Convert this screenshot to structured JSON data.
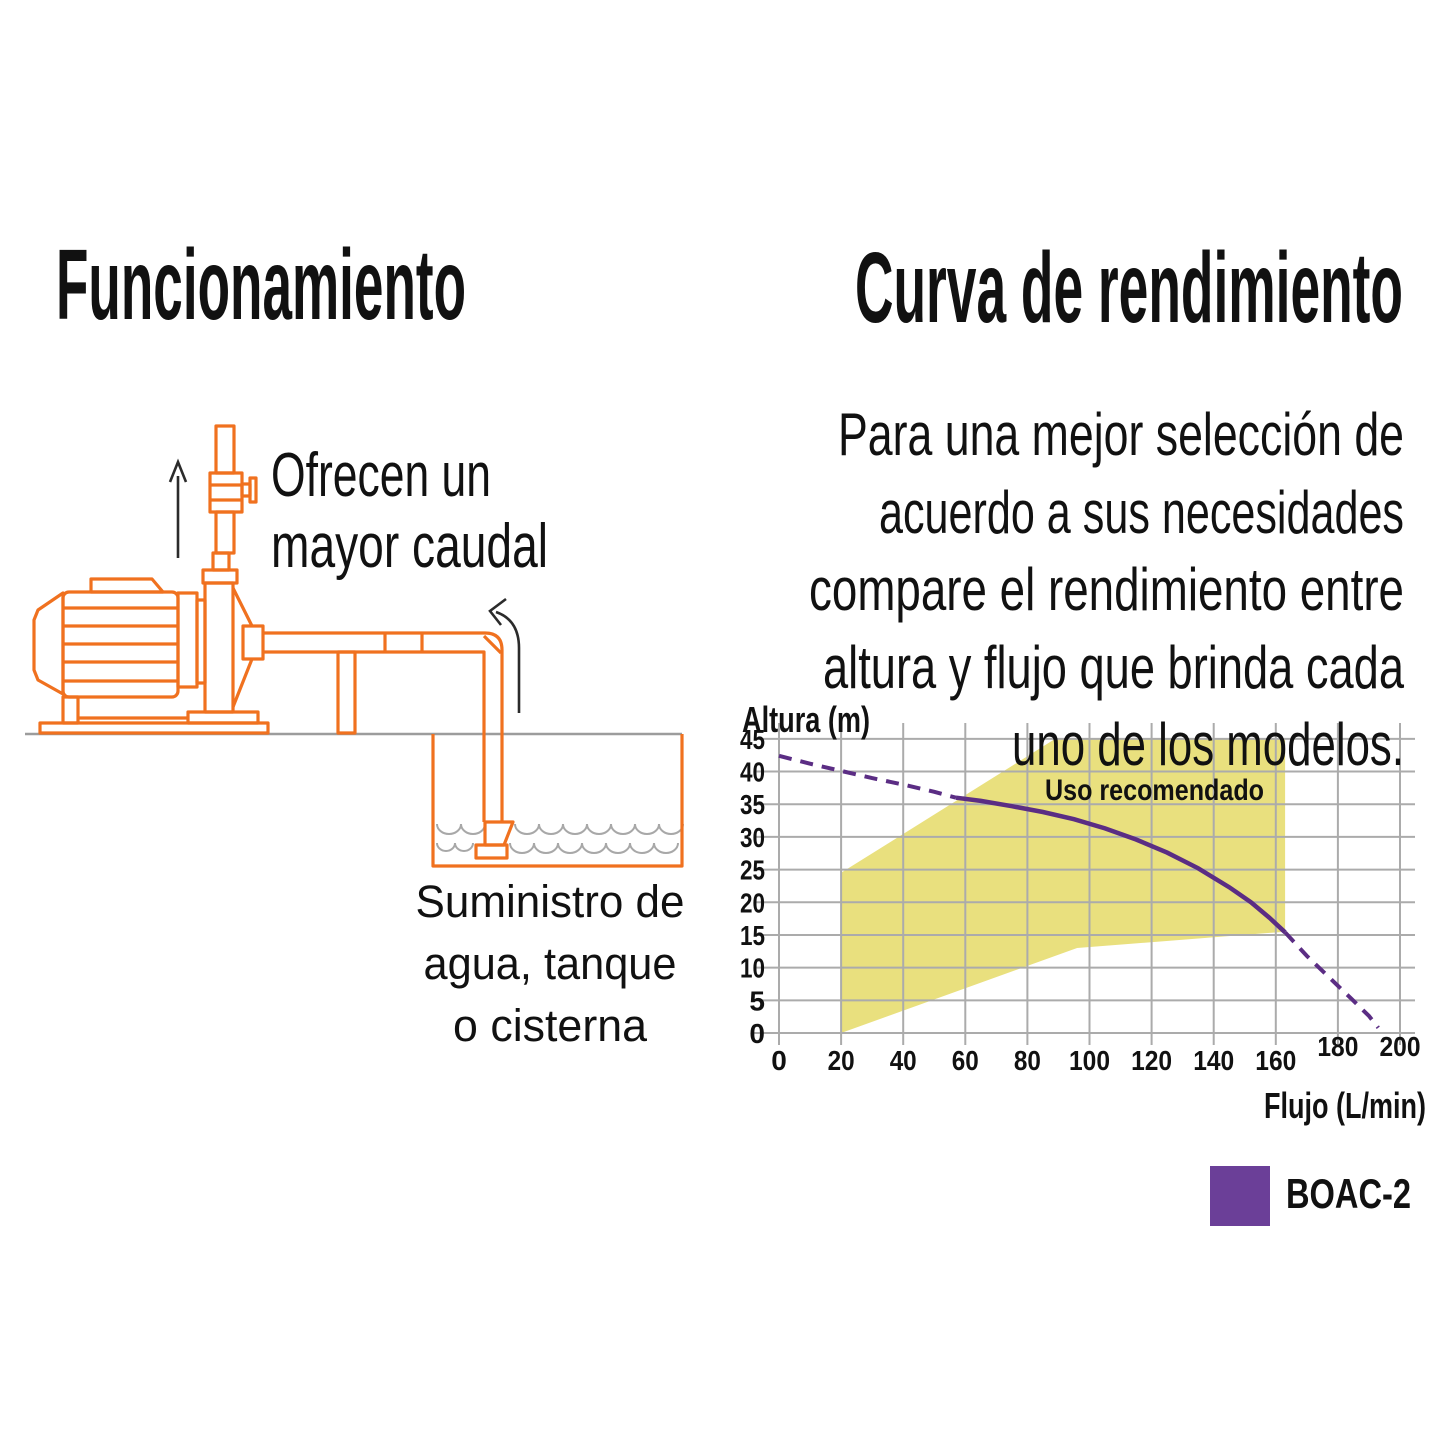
{
  "left": {
    "title": "Funcionamiento",
    "pump_label_lines": [
      "Ofrecen un",
      "mayor caudal"
    ],
    "tank_label_lines": [
      "Suministro de",
      "agua, tanque",
      "o cisterna"
    ]
  },
  "right": {
    "title": "Curva de rendimiento",
    "description_lines": [
      "Para una mejor selección de",
      "acuerdo a sus necesidades",
      "compare el rendimiento entre",
      "altura y flujo que brinda cada",
      "uno de los modelos."
    ]
  },
  "chart_data": {
    "type": "line",
    "xlabel": "Flujo (L/min)",
    "ylabel": "Altura (m)",
    "xlim": [
      0,
      200
    ],
    "ylim": [
      0,
      45
    ],
    "xticks": [
      0,
      20,
      40,
      60,
      80,
      100,
      120,
      140,
      160,
      180,
      200
    ],
    "yticks": [
      0,
      5,
      10,
      15,
      20,
      25,
      30,
      35,
      40,
      45
    ],
    "xticks_raised": [
      180,
      200
    ],
    "grid": true,
    "region": {
      "label": "Uso recomendado",
      "color": "#E9E07E",
      "polygon": [
        [
          20,
          0
        ],
        [
          20,
          24.5
        ],
        [
          89,
          45
        ],
        [
          163,
          45
        ],
        [
          163,
          15.5
        ],
        [
          96,
          13
        ]
      ]
    },
    "series": [
      {
        "name": "BOAC-2",
        "color": "#5B2D84",
        "segments": [
          {
            "style": "dashed",
            "points": [
              [
                0,
                42.4
              ],
              [
                10,
                41.2
              ],
              [
                20,
                40.1
              ],
              [
                30,
                39.0
              ],
              [
                40,
                38.0
              ],
              [
                50,
                36.9
              ],
              [
                57,
                36.0
              ]
            ]
          },
          {
            "style": "solid",
            "points": [
              [
                57,
                36.0
              ],
              [
                65,
                35.5
              ],
              [
                75,
                34.7
              ],
              [
                85,
                33.8
              ],
              [
                95,
                32.7
              ],
              [
                105,
                31.3
              ],
              [
                115,
                29.6
              ],
              [
                125,
                27.6
              ],
              [
                135,
                25.2
              ],
              [
                145,
                22.3
              ],
              [
                152,
                20.0
              ],
              [
                158,
                17.6
              ],
              [
                163,
                15.4
              ]
            ]
          },
          {
            "style": "dashed",
            "points": [
              [
                163,
                15.4
              ],
              [
                170,
                11.8
              ],
              [
                177,
                8.6
              ],
              [
                184,
                5.4
              ],
              [
                190,
                2.6
              ],
              [
                193,
                0.8
              ]
            ]
          }
        ]
      }
    ],
    "legend": [
      {
        "label": "BOAC-2",
        "color": "#6B3F98"
      }
    ]
  },
  "colors": {
    "diagram_orange": "#F0711F",
    "ground_gray": "#9C9C9C",
    "wave_gray": "#A8A8A8",
    "grid_gray": "#ABABAB",
    "curve_purple": "#5B2D84",
    "legend_purple": "#6B3F98"
  }
}
